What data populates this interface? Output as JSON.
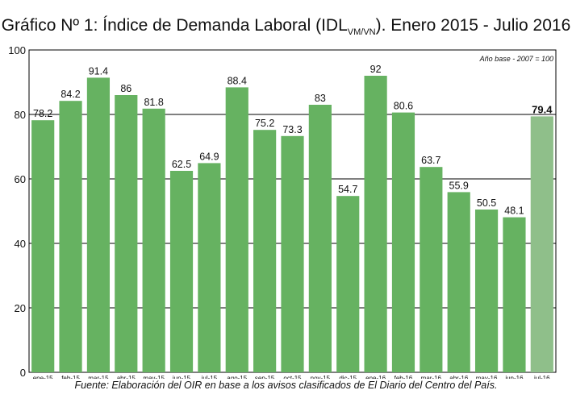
{
  "title": {
    "main": "Gráfico Nº 1: Índice de Demanda Laboral (IDL",
    "subscript": "VM/VN",
    "suffix": ").  Enero 2015 - Julio 2016"
  },
  "source": "Fuente: Elaboración del OIR en base a los avisos clasificados de El Diario del Centro del País.",
  "colors": {
    "bar": "#66b261",
    "bar_highlight": "#8fbf8a",
    "gridline": "#000000"
  },
  "chart_data": {
    "type": "bar",
    "annotation": "Año base - 2007 = 100",
    "categories": [
      "ene-15",
      "feb-15",
      "mar-15",
      "abr-15",
      "may-15",
      "jun-15",
      "jul-15",
      "ago-15",
      "sep-15",
      "oct-15",
      "nov-15",
      "dic-15",
      "ene-16",
      "feb-16",
      "mar-16",
      "abr-16",
      "may-16",
      "jun-16",
      "jul-16"
    ],
    "values": [
      78.2,
      84.2,
      91.4,
      86,
      81.8,
      62.5,
      64.9,
      88.4,
      75.2,
      73.3,
      83,
      54.7,
      92,
      80.6,
      63.7,
      55.9,
      50.5,
      48.1,
      79.4
    ],
    "value_labels": [
      "78.2",
      "84.2",
      "91.4",
      "86",
      "81.8",
      "62.5",
      "64.9",
      "88.4",
      "75.2",
      "73.3",
      "83",
      "54.7",
      "92",
      "80.6",
      "63.7",
      "55.9",
      "50.5",
      "48.1",
      "79.4"
    ],
    "highlight_index": 18,
    "ylim": [
      0,
      100
    ],
    "yticks": [
      0,
      20,
      40,
      60,
      80,
      100
    ],
    "ytick_labels": [
      "0",
      "20",
      "40",
      "60",
      "80",
      "100"
    ],
    "grid": true
  }
}
